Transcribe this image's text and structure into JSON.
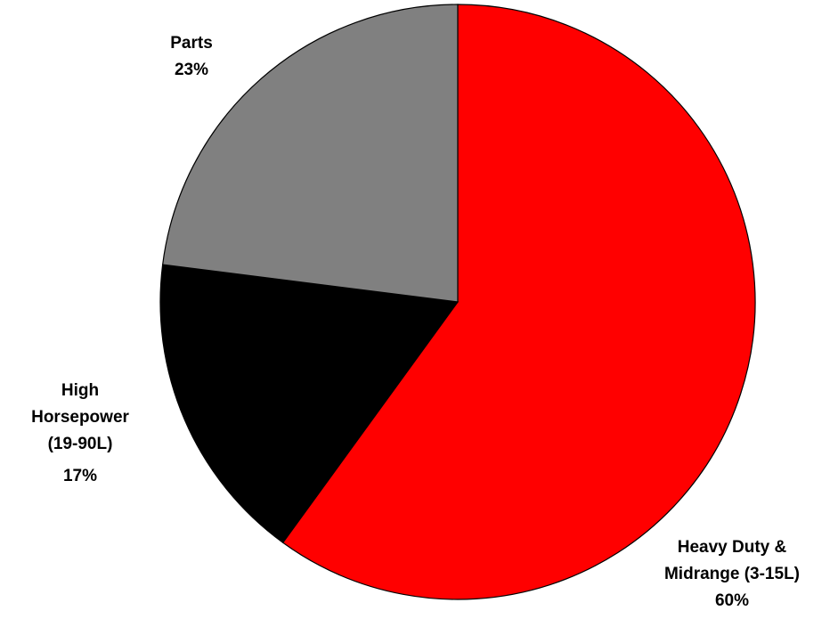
{
  "chart_data": {
    "type": "pie",
    "categories": [
      "Heavy Duty & Midrange (3-15L)",
      "High Horsepower (19-90L)",
      "Parts"
    ],
    "values": [
      60,
      17,
      23
    ],
    "value_labels": [
      "60%",
      "17%",
      "23%"
    ],
    "colors": [
      "#ff0000",
      "#000000",
      "#808080"
    ]
  }
}
